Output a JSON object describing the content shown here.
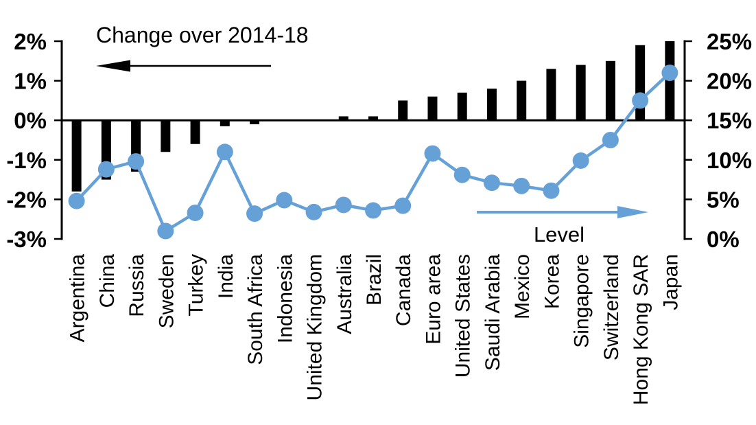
{
  "chart_data": {
    "type": "combo_bar_line",
    "grid": false,
    "legend_position": "in-plot annotations with arrows",
    "categories": [
      "Argentina",
      "China",
      "Russia",
      "Sweden",
      "Turkey",
      "India",
      "South Africa",
      "Indonesia",
      "United Kingdom",
      "Australia",
      "Brazil",
      "Canada",
      "Euro area",
      "United States",
      "Saudi Arabia",
      "Mexico",
      "Korea",
      "Singapore",
      "Switzerland",
      "Hong Kong SAR",
      "Japan"
    ],
    "series": [
      {
        "name": "Change over 2014-18",
        "type": "bar",
        "axis": "left",
        "color": "#000000",
        "values": [
          -1.8,
          -1.5,
          -1.3,
          -0.8,
          -0.6,
          -0.15,
          -0.1,
          0,
          0,
          0.1,
          0.1,
          0.5,
          0.6,
          0.7,
          0.8,
          1.0,
          1.3,
          1.4,
          1.5,
          1.9,
          2.0
        ]
      },
      {
        "name": "Level",
        "type": "line",
        "axis": "right",
        "color": "#65A1D7",
        "values": [
          4.8,
          8.8,
          9.8,
          1.0,
          3.3,
          11.0,
          3.2,
          4.9,
          3.4,
          4.3,
          3.6,
          4.2,
          10.8,
          8.1,
          7.1,
          6.7,
          6.1,
          9.9,
          12.5,
          17.5,
          21.0
        ]
      }
    ],
    "left_axis": {
      "min": -3,
      "max": 2,
      "tick_step": 1,
      "unit": "%",
      "tick_labels": [
        "2%",
        "1%",
        "0%",
        "-1%",
        "-2%",
        "-3%"
      ]
    },
    "right_axis": {
      "min": 0,
      "max": 25,
      "tick_step": 5,
      "unit": "%",
      "tick_labels": [
        "25%",
        "20%",
        "15%",
        "10%",
        "5%",
        "0%"
      ]
    }
  },
  "colors": {
    "bar": "#000000",
    "line": "#65A1D7",
    "text": "#000000",
    "background": "#FFFFFF"
  }
}
